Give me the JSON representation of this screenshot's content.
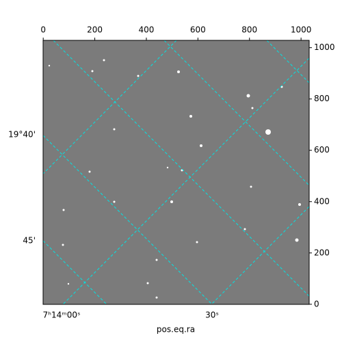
{
  "chart_data": {
    "type": "image",
    "xlabel": "pos.eq.ra",
    "xlim": [
      -0.5,
      1031.5
    ],
    "xticks": [
      0,
      200,
      400,
      600,
      800,
      1000
    ],
    "ylim": [
      -0.5,
      1028.5
    ],
    "yticks": [
      0,
      200,
      400,
      600,
      800,
      1000
    ],
    "ra_labels": [
      "7ʰ14ᵐ00ˢ",
      "30ˢ"
    ],
    "dec_labels": [
      "19°40'",
      "45'"
    ],
    "grid_color": "#00e5e5"
  }
}
